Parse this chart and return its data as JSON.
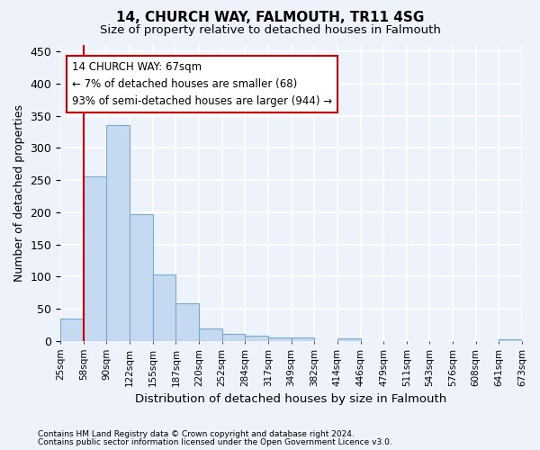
{
  "title": "14, CHURCH WAY, FALMOUTH, TR11 4SG",
  "subtitle": "Size of property relative to detached houses in Falmouth",
  "xlabel": "Distribution of detached houses by size in Falmouth",
  "ylabel": "Number of detached properties",
  "bar_values": [
    35,
    256,
    335,
    197,
    104,
    58,
    19,
    11,
    8,
    5,
    5,
    0,
    4,
    0,
    0,
    0,
    0,
    0,
    0,
    3
  ],
  "bar_labels": [
    "25sqm",
    "58sqm",
    "90sqm",
    "122sqm",
    "155sqm",
    "187sqm",
    "220sqm",
    "252sqm",
    "284sqm",
    "317sqm",
    "349sqm",
    "382sqm",
    "414sqm",
    "446sqm",
    "479sqm",
    "511sqm",
    "543sqm",
    "576sqm",
    "608sqm",
    "641sqm",
    "673sqm"
  ],
  "bar_color": "#c5d9f0",
  "bar_edge_color": "#7aabcc",
  "property_line_color": "#cc0000",
  "annotation_text": "14 CHURCH WAY: 67sqm\n← 7% of detached houses are smaller (68)\n93% of semi-detached houses are larger (944) →",
  "annotation_box_facecolor": "#ffffff",
  "annotation_box_edgecolor": "#cc0000",
  "ylim": [
    0,
    460
  ],
  "yticks": [
    0,
    50,
    100,
    150,
    200,
    250,
    300,
    350,
    400,
    450
  ],
  "background_color": "#edf2fb",
  "grid_color": "#ffffff",
  "footer_line1": "Contains HM Land Registry data © Crown copyright and database right 2024.",
  "footer_line2": "Contains public sector information licensed under the Open Government Licence v3.0."
}
